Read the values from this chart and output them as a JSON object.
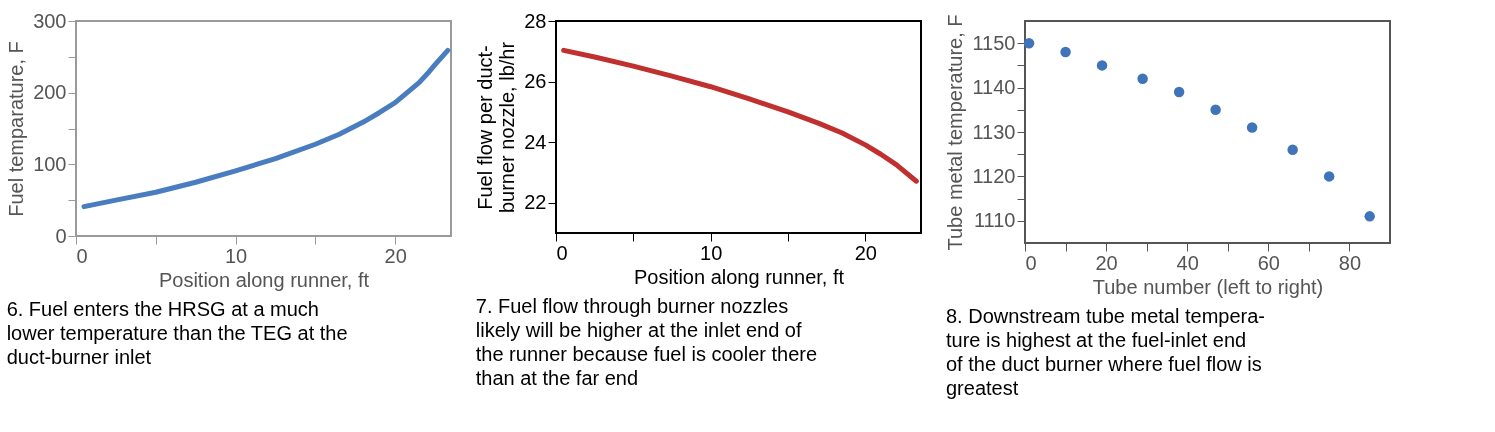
{
  "chart_data": [
    {
      "type": "line",
      "xlabel": "Position along runner, ft",
      "ylabel": "Fuel temparature, F",
      "color": "#4a7cc0",
      "x": [
        0.5,
        2.5,
        5,
        7.5,
        10,
        12.5,
        15,
        16.5,
        18,
        19,
        20,
        21.5,
        22,
        22.5,
        23.3
      ],
      "values": [
        41,
        50,
        61,
        75,
        91,
        108,
        128,
        142,
        159,
        172,
        186,
        214,
        226,
        239,
        259
      ],
      "xlim": [
        0,
        23.5
      ],
      "ylim": [
        0,
        300
      ],
      "xticks": [
        0,
        {
          "value": 5,
          "label": null
        },
        10,
        {
          "value": 15,
          "label": null
        },
        20
      ],
      "yticks": [
        0,
        {
          "value": 50,
          "label": null
        },
        100,
        {
          "value": 150,
          "label": null
        },
        200,
        {
          "value": 250,
          "label": null
        },
        300
      ],
      "annotations": [
        "6. Fuel enters the HRSG at a much\nlower temperature than the TEG at the\nduct-burner inlet"
      ]
    },
    {
      "type": "line",
      "xlabel": "Position along runner, ft",
      "ylabel": "Fuel flow per duct-\nburner nozzle, lb/hr",
      "color": "#c0302f",
      "x": [
        0.5,
        2.5,
        5,
        7.5,
        10,
        12.5,
        15,
        17,
        18.5,
        20,
        21,
        22,
        23.3
      ],
      "values": [
        27.03,
        26.81,
        26.51,
        26.18,
        25.83,
        25.43,
        25.0,
        24.62,
        24.3,
        23.91,
        23.6,
        23.26,
        22.71
      ],
      "xlim": [
        0,
        23.6
      ],
      "ylim": [
        21,
        28
      ],
      "xticks": [
        0,
        {
          "value": 5,
          "label": null
        },
        10,
        {
          "value": 15,
          "label": null
        },
        20
      ],
      "yticks": [
        22,
        24,
        26,
        28
      ],
      "annotations": [
        "7. Fuel flow through burner nozzles\nlikely will be higher at the inlet end of\nthe runner because fuel is cooler there\nthan at the far end"
      ]
    },
    {
      "type": "scatter",
      "xlabel": "Tube number (left to right)",
      "ylabel": "Tube metal temperature, F",
      "color": "#3f74b8",
      "marker": "circle",
      "x": [
        1,
        10,
        19,
        29,
        38,
        47,
        56,
        66,
        75,
        85
      ],
      "values": [
        1150,
        1148,
        1145,
        1142,
        1139,
        1135,
        1131,
        1126,
        1120,
        1111
      ],
      "xlim": [
        0,
        90
      ],
      "ylim": [
        1105,
        1155
      ],
      "xticks": [
        0,
        {
          "value": 10,
          "label": null
        },
        20,
        {
          "value": 30,
          "label": null
        },
        40,
        {
          "value": 50,
          "label": null
        },
        60,
        {
          "value": 70,
          "label": null
        },
        80
      ],
      "yticks": [
        {
          "value": 1115,
          "label": null
        },
        1110,
        1120,
        {
          "value": 1125,
          "label": null
        },
        1130,
        {
          "value": 1135,
          "label": null
        },
        1140,
        {
          "value": 1145,
          "label": null
        },
        1150
      ],
      "annotations": [
        "8. Downstream tube metal tempera-\nture is highest at the fuel-inlet end\nof the duct burner where fuel flow is\ngreatest"
      ]
    }
  ]
}
